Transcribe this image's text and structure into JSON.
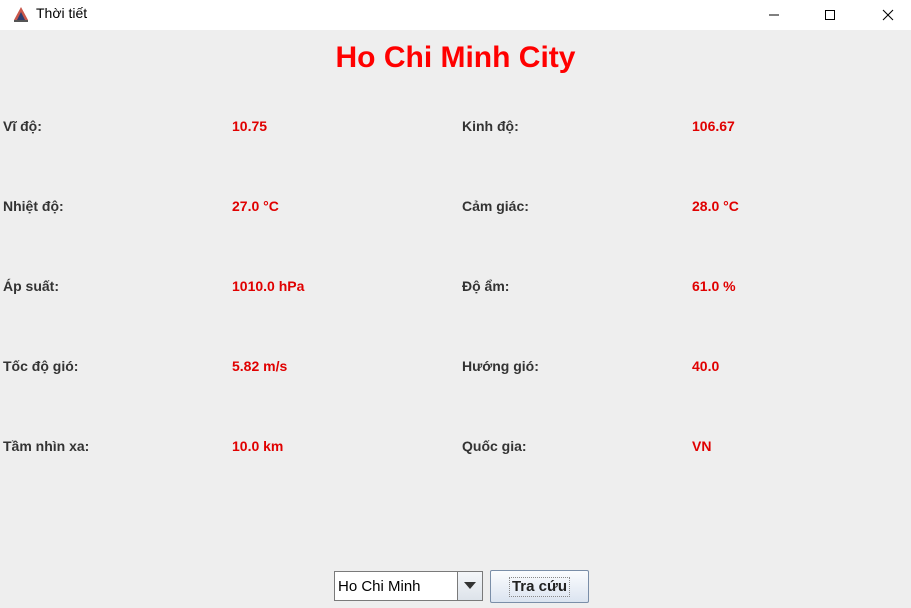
{
  "window": {
    "title": "Thời tiết"
  },
  "city": "Ho Chi Minh City",
  "fields": [
    {
      "label": "Vĩ độ:",
      "value": "10.75"
    },
    {
      "label": "Kinh độ:",
      "value": "106.67"
    },
    {
      "label": "Nhiệt độ:",
      "value": "27.0 °C"
    },
    {
      "label": "Cảm giác:",
      "value": "28.0 °C"
    },
    {
      "label": "Áp suất:",
      "value": "1010.0 hPa"
    },
    {
      "label": "Độ ẩm:",
      "value": "61.0 %"
    },
    {
      "label": "Tốc độ gió:",
      "value": "5.82 m/s"
    },
    {
      "label": "Hướng gió:",
      "value": "40.0"
    },
    {
      "label": "Tầm nhìn xa:",
      "value": "10.0 km"
    },
    {
      "label": "Quốc gia:",
      "value": "VN"
    }
  ],
  "city_select": {
    "selected": "Ho Chi Minh"
  },
  "lookup_button": "Tra cứu",
  "colors": {
    "accent": "#ff0000",
    "label": "#333333",
    "background": "#eeeeee"
  },
  "icons": {
    "app": "java-coffee-icon",
    "minimize": "minimize-icon",
    "maximize": "maximize-icon",
    "close": "close-icon",
    "dropdown": "chevron-down-icon"
  }
}
